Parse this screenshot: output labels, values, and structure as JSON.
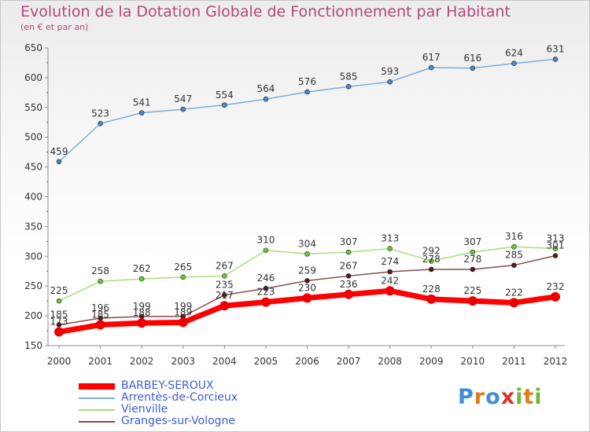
{
  "chart_data": {
    "type": "line",
    "title": "Evolution de la Dotation Globale de Fonctionnement par Habitant",
    "subtitle": "(en € et par an)",
    "xlabel": "",
    "ylabel": "",
    "x": [
      "2000",
      "2001",
      "2002",
      "2003",
      "2004",
      "2005",
      "2006",
      "2007",
      "2008",
      "2009",
      "2010",
      "2011",
      "2012"
    ],
    "ylim": [
      150,
      650
    ],
    "yticks": [
      150,
      200,
      250,
      300,
      350,
      400,
      450,
      500,
      550,
      600,
      650
    ],
    "grid": false,
    "legend_position": "bottom-left",
    "series": [
      {
        "name": "BARBEY-SEROUX",
        "color": "#ff0000",
        "marker": "#ee0000",
        "values": [
          173,
          185,
          188,
          189,
          217,
          223,
          230,
          236,
          242,
          228,
          225,
          222,
          232
        ]
      },
      {
        "name": "Arrentès-de-Corcieux",
        "color": "#79aedc",
        "marker": "#4a86c8",
        "values": [
          459,
          523,
          541,
          547,
          554,
          564,
          576,
          585,
          593,
          617,
          616,
          624,
          631
        ]
      },
      {
        "name": "Vienville",
        "color": "#a8e07a",
        "marker": "#6cc43c",
        "values": [
          225,
          258,
          262,
          265,
          267,
          310,
          304,
          307,
          313,
          292,
          307,
          316,
          313
        ]
      },
      {
        "name": "Granges-sur-Vologne",
        "color": "#8a4a4a",
        "marker": "#5a1a1a",
        "values": [
          185,
          196,
          199,
          199,
          235,
          246,
          259,
          267,
          274,
          278,
          278,
          285,
          301
        ]
      }
    ]
  },
  "logo": {
    "letters": [
      "P",
      "r",
      "o",
      "x",
      "i",
      "t",
      "i"
    ],
    "colors": [
      "#3a8fd8",
      "#e07a1a",
      "#3a8fd8",
      "#e03030",
      "#6cb83c",
      "#e07a1a",
      "#6cb83c"
    ]
  }
}
